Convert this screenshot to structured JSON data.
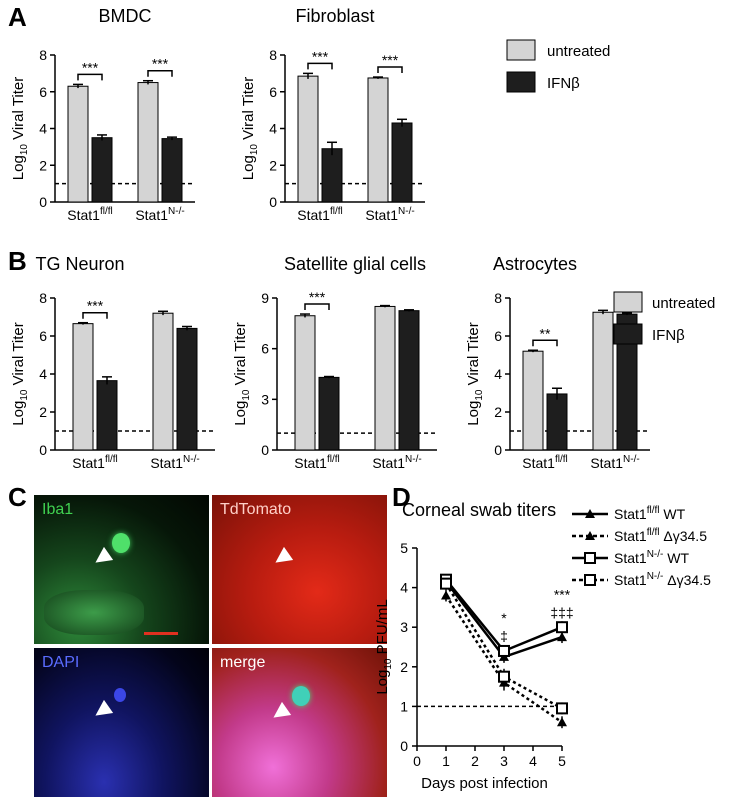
{
  "panels": {
    "A": "A",
    "B": "B",
    "C": "C",
    "D": "D"
  },
  "ylabel_prefix": "Log",
  "ylabel_sub": "10",
  "ylabel_suffix": " Viral Titer",
  "legend": {
    "untreated": "untreated",
    "ifnb": "IFNβ"
  },
  "colors": {
    "untreated": "#d4d4d4",
    "ifnb": "#1e1e1e"
  },
  "micro_labels": {
    "iba1": "Iba1",
    "tdtomato": "TdTomato",
    "dapi": "DAPI",
    "merge": "merge"
  },
  "chart_data": [
    {
      "type": "bar",
      "id": "A1",
      "title": "BMDC",
      "categories": [
        "Stat1fl/fl",
        "Stat1N-/-"
      ],
      "series": [
        {
          "name": "untreated",
          "values": [
            6.3,
            6.5
          ],
          "errors": [
            0.1,
            0.1
          ]
        },
        {
          "name": "IFNβ",
          "values": [
            3.5,
            3.45
          ],
          "errors": [
            0.15,
            0.08
          ]
        }
      ],
      "ylim": [
        0,
        8
      ],
      "yticks": [
        0,
        2,
        4,
        6,
        8
      ],
      "dashed_line": 1,
      "significance": [
        "***",
        "***"
      ]
    },
    {
      "type": "bar",
      "id": "A2",
      "title": "Fibroblast",
      "categories": [
        "Stat1fl/fl",
        "Stat1N-/-"
      ],
      "series": [
        {
          "name": "untreated",
          "values": [
            6.85,
            6.75
          ],
          "errors": [
            0.15,
            0.05
          ]
        },
        {
          "name": "IFNβ",
          "values": [
            2.9,
            4.3
          ],
          "errors": [
            0.35,
            0.2
          ]
        }
      ],
      "ylim": [
        0,
        8
      ],
      "yticks": [
        0,
        2,
        4,
        6,
        8
      ],
      "dashed_line": 1,
      "significance": [
        "***",
        "***"
      ]
    },
    {
      "type": "bar",
      "id": "B1",
      "title": "TG Neuron",
      "categories": [
        "Stat1fl/fl",
        "Stat1N-/-"
      ],
      "series": [
        {
          "name": "untreated",
          "values": [
            6.65,
            7.2
          ],
          "errors": [
            0.05,
            0.1
          ]
        },
        {
          "name": "IFNβ",
          "values": [
            3.65,
            6.4
          ],
          "errors": [
            0.2,
            0.1
          ]
        }
      ],
      "ylim": [
        0,
        8
      ],
      "yticks": [
        0,
        2,
        4,
        6,
        8
      ],
      "dashed_line": 1,
      "significance": [
        "***",
        ""
      ]
    },
    {
      "type": "bar",
      "id": "B2",
      "title": "Satellite glial cells",
      "categories": [
        "Stat1fl/fl",
        "Stat1N-/-"
      ],
      "series": [
        {
          "name": "untreated",
          "values": [
            7.95,
            8.5
          ],
          "errors": [
            0.1,
            0.05
          ]
        },
        {
          "name": "IFNβ",
          "values": [
            4.3,
            8.25
          ],
          "errors": [
            0.05,
            0.05
          ]
        }
      ],
      "ylim": [
        0,
        9
      ],
      "yticks": [
        0,
        3,
        6,
        9
      ],
      "dashed_line": 1,
      "significance": [
        "***",
        ""
      ]
    },
    {
      "type": "bar",
      "id": "B3",
      "title": "Astrocytes",
      "categories": [
        "Stat1fl/fl",
        "Stat1N-/-"
      ],
      "series": [
        {
          "name": "untreated",
          "values": [
            5.2,
            7.25
          ],
          "errors": [
            0.05,
            0.1
          ]
        },
        {
          "name": "IFNβ",
          "values": [
            2.95,
            7.15
          ],
          "errors": [
            0.3,
            0.05
          ]
        }
      ],
      "ylim": [
        0,
        8
      ],
      "yticks": [
        0,
        2,
        4,
        6,
        8
      ],
      "dashed_line": 1,
      "significance": [
        "**",
        ""
      ]
    },
    {
      "type": "line",
      "id": "D",
      "title": "Corneal swab titers",
      "xlabel": "Days post infection",
      "ylabel": "Log10 PFU/mL",
      "x": [
        1,
        3,
        5
      ],
      "xlim": [
        0,
        5
      ],
      "ylim": [
        0,
        5
      ],
      "xticks": [
        0,
        1,
        2,
        3,
        4,
        5
      ],
      "yticks": [
        0,
        1,
        2,
        3,
        4,
        5
      ],
      "dashed_line": 1,
      "series": [
        {
          "name": "Stat1fl/fl WT",
          "values": [
            4.15,
            2.25,
            2.75
          ],
          "errors": [
            0.1,
            0.15,
            0.15
          ],
          "marker": "triangle",
          "dashed": false
        },
        {
          "name": "Stat1fl/fl Δγ34.5",
          "values": [
            3.8,
            1.6,
            0.6
          ],
          "errors": [
            0.15,
            0.2,
            0.15
          ],
          "marker": "triangle",
          "dashed": true
        },
        {
          "name": "Stat1N-/- WT",
          "values": [
            4.2,
            2.4,
            3.0
          ],
          "errors": [
            0.1,
            0.1,
            0.15
          ],
          "marker": "square-open",
          "dashed": false
        },
        {
          "name": "Stat1N-/- Δγ34.5",
          "values": [
            4.1,
            1.75,
            0.95
          ],
          "errors": [
            0.1,
            0.2,
            0.15
          ],
          "marker": "square-open",
          "dashed": true
        }
      ],
      "annotations": [
        {
          "x": 3,
          "lines": [
            "*",
            "‡"
          ]
        },
        {
          "x": 5,
          "lines": [
            "***",
            "‡‡‡"
          ]
        }
      ]
    }
  ]
}
